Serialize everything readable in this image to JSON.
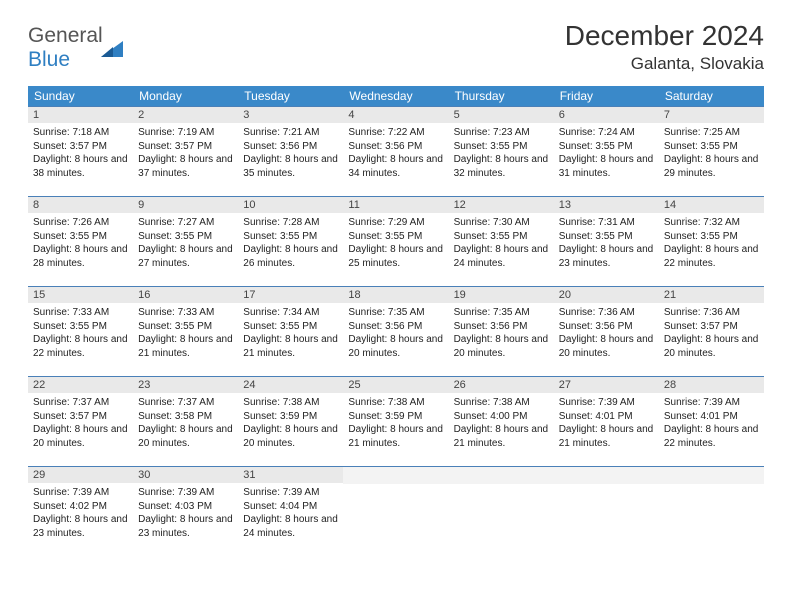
{
  "logo": {
    "text1": "General",
    "text2": "Blue"
  },
  "title": "December 2024",
  "location": "Galanta, Slovakia",
  "colors": {
    "header_bg": "#3a89c9",
    "row_border": "#4a80b8",
    "daynum_bg": "#e9e9e9",
    "logo_blue": "#2f7fc2"
  },
  "day_headers": [
    "Sunday",
    "Monday",
    "Tuesday",
    "Wednesday",
    "Thursday",
    "Friday",
    "Saturday"
  ],
  "weeks": [
    [
      {
        "n": "1",
        "sr": "7:18 AM",
        "ss": "3:57 PM",
        "dl": "8 hours and 38 minutes."
      },
      {
        "n": "2",
        "sr": "7:19 AM",
        "ss": "3:57 PM",
        "dl": "8 hours and 37 minutes."
      },
      {
        "n": "3",
        "sr": "7:21 AM",
        "ss": "3:56 PM",
        "dl": "8 hours and 35 minutes."
      },
      {
        "n": "4",
        "sr": "7:22 AM",
        "ss": "3:56 PM",
        "dl": "8 hours and 34 minutes."
      },
      {
        "n": "5",
        "sr": "7:23 AM",
        "ss": "3:55 PM",
        "dl": "8 hours and 32 minutes."
      },
      {
        "n": "6",
        "sr": "7:24 AM",
        "ss": "3:55 PM",
        "dl": "8 hours and 31 minutes."
      },
      {
        "n": "7",
        "sr": "7:25 AM",
        "ss": "3:55 PM",
        "dl": "8 hours and 29 minutes."
      }
    ],
    [
      {
        "n": "8",
        "sr": "7:26 AM",
        "ss": "3:55 PM",
        "dl": "8 hours and 28 minutes."
      },
      {
        "n": "9",
        "sr": "7:27 AM",
        "ss": "3:55 PM",
        "dl": "8 hours and 27 minutes."
      },
      {
        "n": "10",
        "sr": "7:28 AM",
        "ss": "3:55 PM",
        "dl": "8 hours and 26 minutes."
      },
      {
        "n": "11",
        "sr": "7:29 AM",
        "ss": "3:55 PM",
        "dl": "8 hours and 25 minutes."
      },
      {
        "n": "12",
        "sr": "7:30 AM",
        "ss": "3:55 PM",
        "dl": "8 hours and 24 minutes."
      },
      {
        "n": "13",
        "sr": "7:31 AM",
        "ss": "3:55 PM",
        "dl": "8 hours and 23 minutes."
      },
      {
        "n": "14",
        "sr": "7:32 AM",
        "ss": "3:55 PM",
        "dl": "8 hours and 22 minutes."
      }
    ],
    [
      {
        "n": "15",
        "sr": "7:33 AM",
        "ss": "3:55 PM",
        "dl": "8 hours and 22 minutes."
      },
      {
        "n": "16",
        "sr": "7:33 AM",
        "ss": "3:55 PM",
        "dl": "8 hours and 21 minutes."
      },
      {
        "n": "17",
        "sr": "7:34 AM",
        "ss": "3:55 PM",
        "dl": "8 hours and 21 minutes."
      },
      {
        "n": "18",
        "sr": "7:35 AM",
        "ss": "3:56 PM",
        "dl": "8 hours and 20 minutes."
      },
      {
        "n": "19",
        "sr": "7:35 AM",
        "ss": "3:56 PM",
        "dl": "8 hours and 20 minutes."
      },
      {
        "n": "20",
        "sr": "7:36 AM",
        "ss": "3:56 PM",
        "dl": "8 hours and 20 minutes."
      },
      {
        "n": "21",
        "sr": "7:36 AM",
        "ss": "3:57 PM",
        "dl": "8 hours and 20 minutes."
      }
    ],
    [
      {
        "n": "22",
        "sr": "7:37 AM",
        "ss": "3:57 PM",
        "dl": "8 hours and 20 minutes."
      },
      {
        "n": "23",
        "sr": "7:37 AM",
        "ss": "3:58 PM",
        "dl": "8 hours and 20 minutes."
      },
      {
        "n": "24",
        "sr": "7:38 AM",
        "ss": "3:59 PM",
        "dl": "8 hours and 20 minutes."
      },
      {
        "n": "25",
        "sr": "7:38 AM",
        "ss": "3:59 PM",
        "dl": "8 hours and 21 minutes."
      },
      {
        "n": "26",
        "sr": "7:38 AM",
        "ss": "4:00 PM",
        "dl": "8 hours and 21 minutes."
      },
      {
        "n": "27",
        "sr": "7:39 AM",
        "ss": "4:01 PM",
        "dl": "8 hours and 21 minutes."
      },
      {
        "n": "28",
        "sr": "7:39 AM",
        "ss": "4:01 PM",
        "dl": "8 hours and 22 minutes."
      }
    ],
    [
      {
        "n": "29",
        "sr": "7:39 AM",
        "ss": "4:02 PM",
        "dl": "8 hours and 23 minutes."
      },
      {
        "n": "30",
        "sr": "7:39 AM",
        "ss": "4:03 PM",
        "dl": "8 hours and 23 minutes."
      },
      {
        "n": "31",
        "sr": "7:39 AM",
        "ss": "4:04 PM",
        "dl": "8 hours and 24 minutes."
      },
      null,
      null,
      null,
      null
    ]
  ],
  "labels": {
    "sunrise": "Sunrise: ",
    "sunset": "Sunset: ",
    "daylight": "Daylight: "
  }
}
